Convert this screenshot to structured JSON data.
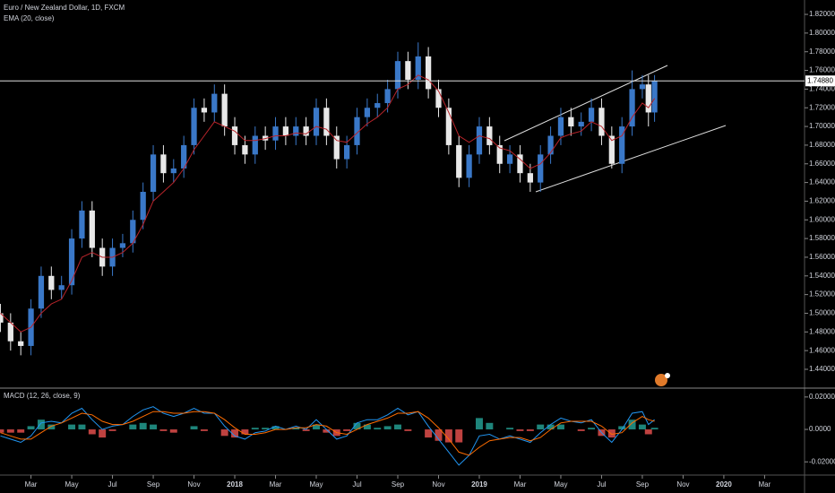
{
  "chart_data": [
    {
      "type": "candlestick",
      "title": "Euro / New Zealand Dollar, 1D, FXCM",
      "x": [
        0.5,
        1,
        1.5,
        2,
        2.5,
        3,
        3.5,
        4,
        4.5,
        5,
        5.5,
        6,
        6.5,
        7,
        7.5,
        8,
        8.5,
        9,
        9.5,
        10,
        10.5,
        11,
        11.5,
        12,
        12.5,
        13,
        13.5,
        14,
        14.5,
        15,
        15.5,
        16,
        16.5,
        17,
        17.5,
        18,
        18.5,
        19,
        19.5,
        20,
        20.5,
        21,
        21.5,
        22,
        22.5,
        23,
        23.5,
        24,
        24.5,
        25,
        25.5,
        26,
        26.5,
        27,
        27.5,
        28,
        28.5,
        29,
        29.5,
        30,
        30.5,
        31,
        31.5,
        32,
        32.3,
        32.6
      ],
      "open": [
        1.5,
        1.49,
        1.47,
        1.465,
        1.505,
        1.54,
        1.525,
        1.53,
        1.58,
        1.61,
        1.57,
        1.55,
        1.57,
        1.575,
        1.6,
        1.63,
        1.67,
        1.65,
        1.655,
        1.68,
        1.72,
        1.715,
        1.735,
        1.7,
        1.68,
        1.67,
        1.69,
        1.685,
        1.7,
        1.69,
        1.7,
        1.69,
        1.72,
        1.69,
        1.665,
        1.68,
        1.71,
        1.72,
        1.725,
        1.74,
        1.77,
        1.75,
        1.775,
        1.74,
        1.72,
        1.68,
        1.645,
        1.67,
        1.7,
        1.68,
        1.66,
        1.67,
        1.65,
        1.64,
        1.67,
        1.69,
        1.71,
        1.7,
        1.705,
        1.72,
        1.69,
        1.66,
        1.7,
        1.74,
        1.745,
        1.715
      ],
      "high": [
        1.51,
        1.5,
        1.48,
        1.515,
        1.55,
        1.55,
        1.54,
        1.59,
        1.62,
        1.62,
        1.58,
        1.58,
        1.585,
        1.61,
        1.64,
        1.68,
        1.68,
        1.665,
        1.69,
        1.73,
        1.73,
        1.745,
        1.745,
        1.71,
        1.69,
        1.7,
        1.7,
        1.71,
        1.71,
        1.71,
        1.71,
        1.73,
        1.73,
        1.7,
        1.69,
        1.72,
        1.73,
        1.735,
        1.75,
        1.78,
        1.78,
        1.79,
        1.785,
        1.75,
        1.73,
        1.69,
        1.68,
        1.71,
        1.71,
        1.69,
        1.68,
        1.68,
        1.66,
        1.68,
        1.7,
        1.72,
        1.72,
        1.715,
        1.73,
        1.73,
        1.7,
        1.71,
        1.76,
        1.755,
        1.755,
        1.755
      ],
      "low": [
        1.48,
        1.46,
        1.455,
        1.455,
        1.495,
        1.515,
        1.515,
        1.52,
        1.57,
        1.56,
        1.54,
        1.54,
        1.56,
        1.565,
        1.59,
        1.62,
        1.64,
        1.64,
        1.645,
        1.67,
        1.705,
        1.705,
        1.69,
        1.67,
        1.66,
        1.66,
        1.675,
        1.675,
        1.68,
        1.68,
        1.68,
        1.68,
        1.68,
        1.655,
        1.655,
        1.67,
        1.7,
        1.71,
        1.715,
        1.73,
        1.74,
        1.74,
        1.73,
        1.71,
        1.67,
        1.635,
        1.635,
        1.66,
        1.67,
        1.65,
        1.65,
        1.64,
        1.63,
        1.63,
        1.66,
        1.68,
        1.69,
        1.69,
        1.695,
        1.68,
        1.655,
        1.65,
        1.69,
        1.73,
        1.7,
        1.705
      ],
      "close": [
        1.49,
        1.47,
        1.465,
        1.505,
        1.54,
        1.525,
        1.53,
        1.58,
        1.61,
        1.57,
        1.55,
        1.57,
        1.575,
        1.6,
        1.63,
        1.67,
        1.65,
        1.655,
        1.68,
        1.72,
        1.715,
        1.735,
        1.7,
        1.68,
        1.67,
        1.69,
        1.685,
        1.7,
        1.69,
        1.7,
        1.69,
        1.72,
        1.69,
        1.665,
        1.68,
        1.71,
        1.72,
        1.725,
        1.74,
        1.77,
        1.75,
        1.775,
        1.74,
        1.72,
        1.68,
        1.645,
        1.67,
        1.7,
        1.68,
        1.66,
        1.67,
        1.65,
        1.64,
        1.67,
        1.69,
        1.71,
        1.7,
        1.705,
        1.72,
        1.69,
        1.66,
        1.7,
        1.74,
        1.745,
        1.715,
        1.7488
      ],
      "up_color": "#3a78c8",
      "down_color": "#e8e8e8",
      "overlays": [
        {
          "name": "EMA (20, close)",
          "color": "#b8242a",
          "values": [
            1.5,
            1.49,
            1.48,
            1.485,
            1.5,
            1.51,
            1.515,
            1.535,
            1.56,
            1.565,
            1.56,
            1.56,
            1.565,
            1.575,
            1.595,
            1.62,
            1.63,
            1.64,
            1.655,
            1.675,
            1.69,
            1.705,
            1.7,
            1.695,
            1.685,
            1.685,
            1.687,
            1.69,
            1.69,
            1.693,
            1.692,
            1.7,
            1.697,
            1.685,
            1.683,
            1.693,
            1.703,
            1.71,
            1.72,
            1.74,
            1.745,
            1.755,
            1.75,
            1.738,
            1.715,
            1.69,
            1.683,
            1.69,
            1.687,
            1.677,
            1.674,
            1.665,
            1.655,
            1.66,
            1.672,
            1.688,
            1.692,
            1.695,
            1.705,
            1.7,
            1.685,
            1.69,
            1.71,
            1.725,
            1.72,
            1.73
          ]
        }
      ],
      "price_line": {
        "value": 1.7488,
        "label": "1.74880"
      },
      "xlim": [
        0.48,
        39.96
      ],
      "xticks": [
        {
          "value": 2,
          "label": "Mar"
        },
        {
          "value": 4,
          "label": "May"
        },
        {
          "value": 6,
          "label": "Jul"
        },
        {
          "value": 8,
          "label": "Sep"
        },
        {
          "value": 10,
          "label": "Nov"
        },
        {
          "value": 12,
          "label": "2018"
        },
        {
          "value": 14,
          "label": "Mar"
        },
        {
          "value": 16,
          "label": "May"
        },
        {
          "value": 18,
          "label": "Jul"
        },
        {
          "value": 20,
          "label": "Sep"
        },
        {
          "value": 22,
          "label": "Nov"
        },
        {
          "value": 24,
          "label": "2019"
        },
        {
          "value": 26,
          "label": "Mar"
        },
        {
          "value": 28,
          "label": "May"
        },
        {
          "value": 30,
          "label": "Jul"
        },
        {
          "value": 32,
          "label": "Sep"
        },
        {
          "value": 34,
          "label": "Nov"
        },
        {
          "value": 36,
          "label": "2020"
        },
        {
          "value": 38,
          "label": "Mar"
        }
      ],
      "ylim": [
        1.4208,
        1.8354
      ],
      "yticks": [
        {
          "value": 1.44,
          "label": "1.44000"
        },
        {
          "value": 1.46,
          "label": "1.46000"
        },
        {
          "value": 1.48,
          "label": "1.48000"
        },
        {
          "value": 1.5,
          "label": "1.50000"
        },
        {
          "value": 1.52,
          "label": "1.52000"
        },
        {
          "value": 1.54,
          "label": "1.54000"
        },
        {
          "value": 1.56,
          "label": "1.56000"
        },
        {
          "value": 1.58,
          "label": "1.58000"
        },
        {
          "value": 1.6,
          "label": "1.60000"
        },
        {
          "value": 1.62,
          "label": "1.62000"
        },
        {
          "value": 1.64,
          "label": "1.64000"
        },
        {
          "value": 1.66,
          "label": "1.66000"
        },
        {
          "value": 1.68,
          "label": "1.68000"
        },
        {
          "value": 1.7,
          "label": "1.70000"
        },
        {
          "value": 1.72,
          "label": "1.72000"
        },
        {
          "value": 1.74,
          "label": "1.74000"
        },
        {
          "value": 1.76,
          "label": "1.76000"
        },
        {
          "value": 1.78,
          "label": "1.78000"
        },
        {
          "value": 1.8,
          "label": "1.80000"
        },
        {
          "value": 1.82,
          "label": "1.82000"
        }
      ]
    },
    {
      "type": "macd",
      "title": "MACD (12, 26, close, 9)",
      "histogram": {
        "up_color": "#26a69a",
        "down_color": "#ef5350",
        "values": [
          -0.002,
          -0.002,
          -0.002,
          0.002,
          0.006,
          0.003,
          0,
          0.003,
          0.003,
          -0.003,
          -0.005,
          -0.001,
          0,
          0.003,
          0.004,
          0.003,
          -0.001,
          -0.002,
          0,
          0.002,
          -0.001,
          0,
          -0.004,
          -0.005,
          -0.003,
          0.001,
          0.001,
          0.002,
          0,
          0.001,
          -0.001,
          0.003,
          -0.002,
          -0.004,
          -0.001,
          0.004,
          0.003,
          0.001,
          0.002,
          0.003,
          -0.001,
          0,
          -0.005,
          -0.007,
          -0.008,
          -0.008,
          0,
          0.007,
          0.004,
          0,
          0.001,
          -0.001,
          -0.001,
          0.003,
          0.003,
          0.003,
          0,
          -0.001,
          0.001,
          -0.004,
          -0.005,
          0.002,
          0.006,
          0.003,
          -0.003,
          0.001
        ]
      },
      "macd_line": {
        "color": "#2196f3",
        "values": [
          -0.004,
          -0.006,
          -0.008,
          -0.004,
          0.004,
          0.005,
          0.004,
          0.01,
          0.013,
          0.006,
          0,
          0.002,
          0.003,
          0.008,
          0.012,
          0.014,
          0.01,
          0.008,
          0.01,
          0.013,
          0.01,
          0.01,
          0.002,
          -0.004,
          -0.006,
          -0.002,
          -0.001,
          0.002,
          0,
          0.002,
          0,
          0.006,
          0,
          -0.006,
          -0.004,
          0.004,
          0.006,
          0.006,
          0.009,
          0.013,
          0.009,
          0.011,
          0.002,
          -0.006,
          -0.014,
          -0.022,
          -0.016,
          -0.004,
          -0.003,
          -0.006,
          -0.004,
          -0.006,
          -0.008,
          -0.002,
          0.003,
          0.007,
          0.005,
          0.004,
          0.006,
          -0.002,
          -0.008,
          0,
          0.01,
          0.011,
          0.003,
          0.006
        ]
      },
      "signal_line": {
        "color": "#ff6d00",
        "values": [
          -0.002,
          -0.004,
          -0.006,
          -0.006,
          -0.002,
          0.002,
          0.004,
          0.007,
          0.01,
          0.009,
          0.005,
          0.003,
          0.003,
          0.005,
          0.008,
          0.011,
          0.011,
          0.01,
          0.01,
          0.011,
          0.011,
          0.01,
          0.006,
          0.001,
          -0.003,
          -0.003,
          -0.002,
          0,
          0,
          0.001,
          0.001,
          0.003,
          0.002,
          -0.002,
          -0.003,
          0,
          0.003,
          0.005,
          0.007,
          0.01,
          0.01,
          0.011,
          0.007,
          0.001,
          -0.006,
          -0.014,
          -0.016,
          -0.011,
          -0.007,
          -0.006,
          -0.005,
          -0.005,
          -0.007,
          -0.005,
          0,
          0.004,
          0.005,
          0.005,
          0.005,
          0.002,
          -0.003,
          -0.002,
          0.004,
          0.008,
          0.006,
          0.005
        ]
      },
      "ylim": [
        -0.0276,
        0.0249
      ],
      "yticks": [
        {
          "value": 0.02,
          "label": "0.02000"
        },
        {
          "value": 0,
          "label": "0.0000"
        },
        {
          "value": -0.02,
          "label": "-0.02000"
        }
      ]
    }
  ]
}
